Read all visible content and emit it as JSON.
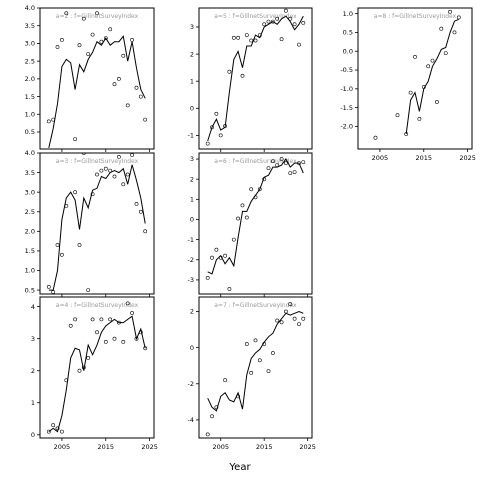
{
  "xlabel": "Year",
  "chart_data": [
    {
      "type": "line",
      "title": "a=2 : f=GillnetSurveyIndex",
      "xlim": [
        2000,
        2026
      ],
      "ylim": [
        0.02,
        4.0
      ],
      "xticks": [
        2005,
        2015,
        2025
      ],
      "xtick_labels": [
        "2005",
        "2015",
        "2025"
      ],
      "yticks": [
        0.5,
        1.0,
        1.5,
        2.0,
        2.5,
        3.0,
        3.5,
        4.0
      ],
      "ytick_labels": [
        "0.5",
        "1.0",
        "1.5",
        "2.0",
        "2.5",
        "3.0",
        "3.5",
        "4.0"
      ],
      "show_x_tick_labels": false,
      "line": {
        "x": [
          2002,
          2003,
          2004,
          2005,
          2006,
          2007,
          2008,
          2009,
          2010,
          2011,
          2012,
          2013,
          2014,
          2015,
          2016,
          2017,
          2018,
          2019,
          2020,
          2021,
          2022,
          2023,
          2024
        ],
        "y": [
          0.05,
          0.6,
          1.3,
          2.35,
          2.55,
          2.45,
          1.7,
          2.4,
          2.2,
          2.55,
          2.75,
          3.05,
          2.95,
          3.15,
          2.95,
          3.05,
          3.05,
          3.2,
          2.5,
          3.05,
          2.3,
          1.7,
          1.45
        ]
      },
      "points": {
        "x": [
          2002,
          2003,
          2004,
          2005,
          2006,
          2008,
          2009,
          2010,
          2011,
          2012,
          2013,
          2014,
          2015,
          2016,
          2017,
          2018,
          2019,
          2020,
          2021,
          2022,
          2023,
          2024
        ],
        "y": [
          0.8,
          0.85,
          2.9,
          3.1,
          3.85,
          0.3,
          2.95,
          3.7,
          2.7,
          3.25,
          3.85,
          3.05,
          3.15,
          3.4,
          1.85,
          2.0,
          2.65,
          1.25,
          3.1,
          1.75,
          1.5,
          0.85
        ]
      }
    },
    {
      "type": "line",
      "title": "a=5 : f=GillnetSurveyIndex",
      "xlim": [
        2000,
        2026
      ],
      "ylim": [
        -1.5,
        3.7
      ],
      "xticks": [
        2005,
        2015,
        2025
      ],
      "xtick_labels": [
        "2005",
        "2015",
        "2025"
      ],
      "yticks": [
        -1,
        0,
        1,
        2,
        3
      ],
      "ytick_labels": [
        "-1",
        "0",
        "1",
        "2",
        "3"
      ],
      "show_x_tick_labels": false,
      "line": {
        "x": [
          2002,
          2003,
          2004,
          2005,
          2006,
          2007,
          2008,
          2009,
          2010,
          2011,
          2012,
          2013,
          2014,
          2015,
          2016,
          2017,
          2018,
          2019,
          2020,
          2021,
          2022,
          2023,
          2024
        ],
        "y": [
          -1.2,
          -0.7,
          -0.4,
          -0.8,
          -0.7,
          0.6,
          1.8,
          2.1,
          1.5,
          2.3,
          2.3,
          2.7,
          2.6,
          3.0,
          3.1,
          3.2,
          3.1,
          3.3,
          3.4,
          3.2,
          2.9,
          3.1,
          3.4
        ]
      },
      "points": {
        "x": [
          2002,
          2003,
          2004,
          2005,
          2006,
          2007,
          2008,
          2009,
          2010,
          2011,
          2012,
          2013,
          2014,
          2015,
          2016,
          2017,
          2018,
          2019,
          2020,
          2021,
          2022,
          2023,
          2024
        ],
        "y": [
          -1.3,
          -0.7,
          -0.2,
          -1.0,
          -0.65,
          1.35,
          2.6,
          2.6,
          1.2,
          2.7,
          2.5,
          2.5,
          2.7,
          3.1,
          3.2,
          3.2,
          3.3,
          2.55,
          3.6,
          3.3,
          3.1,
          2.35,
          3.15
        ]
      }
    },
    {
      "type": "line",
      "title": "a=8 : f=GillnetSurveyIndex",
      "xlim": [
        2000,
        2026
      ],
      "ylim": [
        -2.6,
        1.15
      ],
      "xticks": [
        2005,
        2015,
        2025
      ],
      "xtick_labels": [
        "2005",
        "2015",
        "2025"
      ],
      "yticks": [
        -2.0,
        -1.5,
        -1.0,
        -0.5,
        0.0,
        0.5,
        1.0
      ],
      "ytick_labels": [
        "-2.0",
        "-1.5",
        "-1.0",
        "-0.5",
        "0.0",
        "0.5",
        "1.0"
      ],
      "show_x_tick_labels": true,
      "line": {
        "x": [
          2011,
          2012,
          2013,
          2014,
          2015,
          2016,
          2017,
          2018,
          2019,
          2020,
          2021,
          2022,
          2023
        ],
        "y": [
          -2.2,
          -1.3,
          -1.1,
          -1.6,
          -1.0,
          -0.8,
          -0.4,
          -0.2,
          0.05,
          0.1,
          0.5,
          0.8,
          0.85
        ]
      },
      "points": {
        "x": [
          2004,
          2009,
          2011,
          2012,
          2013,
          2014,
          2015,
          2016,
          2017,
          2018,
          2019,
          2020,
          2021,
          2022,
          2023
        ],
        "y": [
          -2.3,
          -1.7,
          -2.2,
          -1.1,
          -0.15,
          -1.8,
          -0.95,
          -0.4,
          -0.25,
          -1.35,
          0.6,
          -0.05,
          1.05,
          0.5,
          0.9
        ]
      }
    },
    {
      "type": "line",
      "title": "a=3 : f=GillnetSurveyIndex",
      "xlim": [
        2000,
        2026
      ],
      "ylim": [
        0.4,
        4.0
      ],
      "xticks": [
        2005,
        2015,
        2025
      ],
      "xtick_labels": [
        "2005",
        "2015",
        "2025"
      ],
      "yticks": [
        0.5,
        1.0,
        1.5,
        2.0,
        2.5,
        3.0,
        3.5,
        4.0
      ],
      "ytick_labels": [
        "0.5",
        "1.0",
        "1.5",
        "2.0",
        "2.5",
        "3.0",
        "3.5",
        "4.0"
      ],
      "show_x_tick_labels": false,
      "line": {
        "x": [
          2002,
          2003,
          2004,
          2005,
          2006,
          2007,
          2008,
          2009,
          2010,
          2011,
          2012,
          2013,
          2014,
          2015,
          2016,
          2017,
          2018,
          2019,
          2020,
          2021,
          2022,
          2023,
          2024
        ],
        "y": [
          0.5,
          0.5,
          1.0,
          2.3,
          2.85,
          3.0,
          2.8,
          2.05,
          2.85,
          2.6,
          3.05,
          3.1,
          3.4,
          3.35,
          3.5,
          3.55,
          3.5,
          3.6,
          3.2,
          3.7,
          3.3,
          2.85,
          2.2
        ]
      },
      "points": {
        "x": [
          2002,
          2003,
          2004,
          2005,
          2006,
          2008,
          2009,
          2010,
          2011,
          2012,
          2013,
          2014,
          2015,
          2016,
          2017,
          2018,
          2019,
          2020,
          2021,
          2022,
          2023,
          2024
        ],
        "y": [
          0.58,
          0.45,
          1.65,
          1.4,
          2.65,
          3.0,
          1.65,
          4.0,
          0.5,
          2.95,
          3.45,
          3.55,
          3.6,
          3.55,
          3.4,
          3.9,
          3.2,
          3.45,
          3.95,
          2.7,
          2.5,
          2.0
        ]
      }
    },
    {
      "type": "line",
      "title": "a=6 : f=GillnetSurveyIndex",
      "xlim": [
        2000,
        2026
      ],
      "ylim": [
        -3.7,
        3.3
      ],
      "xticks": [
        2005,
        2015,
        2025
      ],
      "xtick_labels": [
        "2005",
        "2015",
        "2025"
      ],
      "yticks": [
        -3,
        -2,
        -1,
        0,
        1,
        2,
        3
      ],
      "ytick_labels": [
        "-3",
        "-2",
        "-1",
        "0",
        "1",
        "2",
        "3"
      ],
      "show_x_tick_labels": false,
      "line": {
        "x": [
          2002,
          2003,
          2004,
          2005,
          2006,
          2007,
          2008,
          2009,
          2010,
          2011,
          2012,
          2013,
          2014,
          2015,
          2016,
          2017,
          2018,
          2019,
          2020,
          2021,
          2022,
          2023,
          2024
        ],
        "y": [
          -2.6,
          -2.7,
          -2.0,
          -1.8,
          -2.2,
          -1.9,
          -2.3,
          -0.9,
          0.4,
          0.4,
          0.9,
          1.2,
          1.5,
          2.1,
          2.2,
          2.6,
          2.6,
          2.7,
          3.0,
          2.6,
          2.8,
          2.8,
          2.3
        ]
      },
      "points": {
        "x": [
          2002,
          2003,
          2004,
          2005,
          2006,
          2007,
          2008,
          2009,
          2010,
          2011,
          2012,
          2013,
          2014,
          2015,
          2016,
          2017,
          2018,
          2019,
          2020,
          2021,
          2022,
          2023,
          2024
        ],
        "y": [
          -2.9,
          -1.9,
          -1.5,
          -1.9,
          -1.8,
          -3.45,
          -1.0,
          0.05,
          0.7,
          0.1,
          1.5,
          1.1,
          1.5,
          2.0,
          2.55,
          2.9,
          2.7,
          3.0,
          2.8,
          2.3,
          2.35,
          2.8,
          2.85
        ]
      }
    },
    {
      "type": "line",
      "title": "a=4 : f=GillnetSurveyIndex",
      "xlim": [
        2000,
        2026
      ],
      "ylim": [
        -0.1,
        4.3
      ],
      "xticks": [
        2005,
        2015,
        2025
      ],
      "xtick_labels": [
        "2005",
        "2015",
        "2025"
      ],
      "yticks": [
        0,
        1,
        2,
        3,
        4
      ],
      "ytick_labels": [
        "0",
        "1",
        "2",
        "3",
        "4"
      ],
      "show_x_tick_labels": true,
      "line": {
        "x": [
          2002,
          2003,
          2004,
          2005,
          2006,
          2007,
          2008,
          2009,
          2010,
          2011,
          2012,
          2013,
          2014,
          2015,
          2016,
          2017,
          2018,
          2019,
          2020,
          2021,
          2022,
          2023,
          2024
        ],
        "y": [
          0.1,
          0.2,
          0.1,
          0.6,
          1.4,
          2.4,
          2.7,
          2.65,
          2.0,
          2.8,
          2.5,
          2.8,
          3.2,
          3.4,
          3.5,
          3.6,
          3.5,
          3.5,
          3.6,
          3.7,
          3.0,
          3.3,
          2.7
        ]
      },
      "points": {
        "x": [
          2002,
          2003,
          2004,
          2005,
          2006,
          2007,
          2008,
          2009,
          2010,
          2011,
          2012,
          2013,
          2014,
          2015,
          2016,
          2017,
          2018,
          2019,
          2020,
          2021,
          2022,
          2023,
          2024
        ],
        "y": [
          0.1,
          0.3,
          0.2,
          0.1,
          1.7,
          3.4,
          3.6,
          2.0,
          2.1,
          2.4,
          3.6,
          3.2,
          3.6,
          2.9,
          3.6,
          3.0,
          3.5,
          2.9,
          4.1,
          3.8,
          3.0,
          3.2,
          2.7
        ]
      }
    },
    {
      "type": "line",
      "title": "a=7 : f=GillnetSurveyIndex",
      "xlim": [
        2000,
        2026
      ],
      "ylim": [
        -5.0,
        2.8
      ],
      "xticks": [
        2005,
        2015,
        2025
      ],
      "xtick_labels": [
        "2005",
        "2015",
        "2025"
      ],
      "yticks": [
        -4,
        -2,
        0,
        2
      ],
      "ytick_labels": [
        "-4",
        "-2",
        "0",
        "2"
      ],
      "show_x_tick_labels": true,
      "line": {
        "x": [
          2002,
          2003,
          2004,
          2005,
          2006,
          2007,
          2008,
          2009,
          2010,
          2011,
          2012,
          2013,
          2014,
          2015,
          2016,
          2017,
          2018,
          2019,
          2020,
          2021,
          2022,
          2023,
          2024
        ],
        "y": [
          -2.8,
          -3.3,
          -3.5,
          -2.7,
          -2.5,
          -2.9,
          -3.0,
          -2.5,
          -3.4,
          -1.5,
          -0.6,
          -0.3,
          -0.1,
          0.3,
          0.6,
          0.8,
          1.3,
          1.6,
          1.9,
          1.8,
          1.9,
          2.0,
          1.9
        ]
      },
      "points": {
        "x": [
          2002,
          2003,
          2004,
          2006,
          2009,
          2011,
          2012,
          2013,
          2014,
          2015,
          2016,
          2017,
          2018,
          2019,
          2020,
          2021,
          2022,
          2023,
          2024
        ],
        "y": [
          -4.8,
          -3.8,
          -3.3,
          -1.8,
          -2.7,
          0.2,
          -1.4,
          0.4,
          -0.7,
          0.2,
          -1.3,
          -0.3,
          1.5,
          1.4,
          2.0,
          2.4,
          1.6,
          1.3,
          1.6
        ]
      }
    }
  ]
}
